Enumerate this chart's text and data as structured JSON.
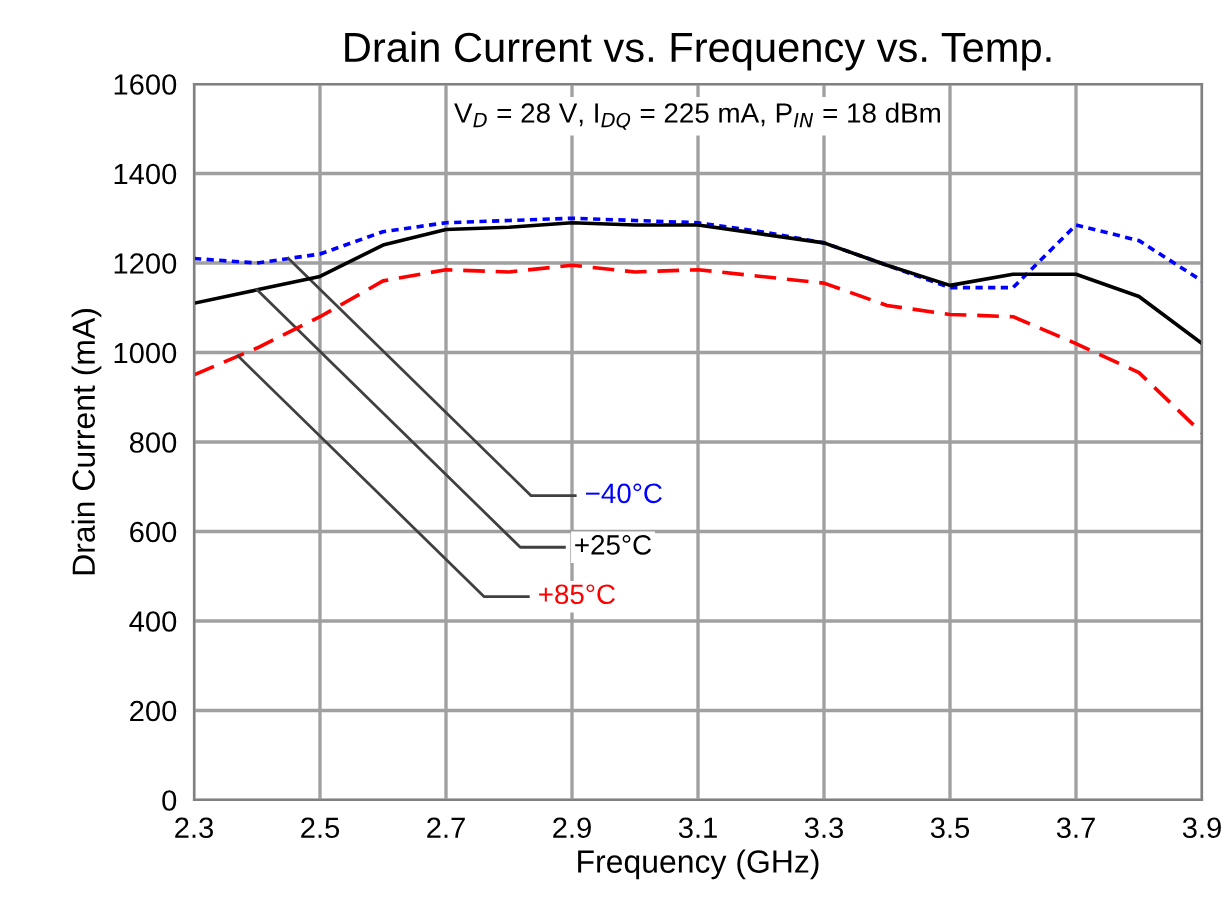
{
  "chart_data": {
    "type": "line",
    "title": "Drain Current vs. Frequency vs. Temp.",
    "subtitle": "V$_{D}$ = 28 V, I$_{DQ}$ = 225 mA, P$_{IN}$ = 18 dBm",
    "xlabel": "Frequency (GHz)",
    "ylabel": "Drain Current (mA)",
    "x": [
      2.3,
      2.4,
      2.5,
      2.6,
      2.7,
      2.8,
      2.9,
      3.0,
      3.1,
      3.2,
      3.3,
      3.4,
      3.5,
      3.6,
      3.7,
      3.8,
      3.9
    ],
    "series": [
      {
        "name": "−40°C",
        "color": "#0000ff",
        "line_style": "dotted",
        "values": [
          1210,
          1200,
          1220,
          1270,
          1290,
          1295,
          1300,
          1295,
          1290,
          1270,
          1245,
          1195,
          1145,
          1145,
          1285,
          1250,
          1160
        ]
      },
      {
        "name": "+25°C",
        "color": "#000000",
        "line_style": "solid",
        "values": [
          1110,
          1140,
          1170,
          1240,
          1275,
          1280,
          1290,
          1285,
          1285,
          1265,
          1245,
          1195,
          1150,
          1175,
          1175,
          1125,
          1020
        ]
      },
      {
        "name": "+85°C",
        "color": "#ff0000",
        "line_style": "dashed",
        "values": [
          950,
          1010,
          1080,
          1160,
          1185,
          1180,
          1195,
          1180,
          1185,
          1170,
          1155,
          1105,
          1085,
          1080,
          1020,
          955,
          820
        ]
      }
    ],
    "xlim": [
      2.3,
      3.9
    ],
    "xticks": [
      2.3,
      2.5,
      2.7,
      2.9,
      3.1,
      3.3,
      3.5,
      3.7,
      3.9
    ],
    "ylim": [
      0,
      1600
    ],
    "yticks": [
      0,
      200,
      400,
      600,
      800,
      1000,
      1200,
      1400,
      1600
    ],
    "grid": true,
    "marker": "none"
  }
}
